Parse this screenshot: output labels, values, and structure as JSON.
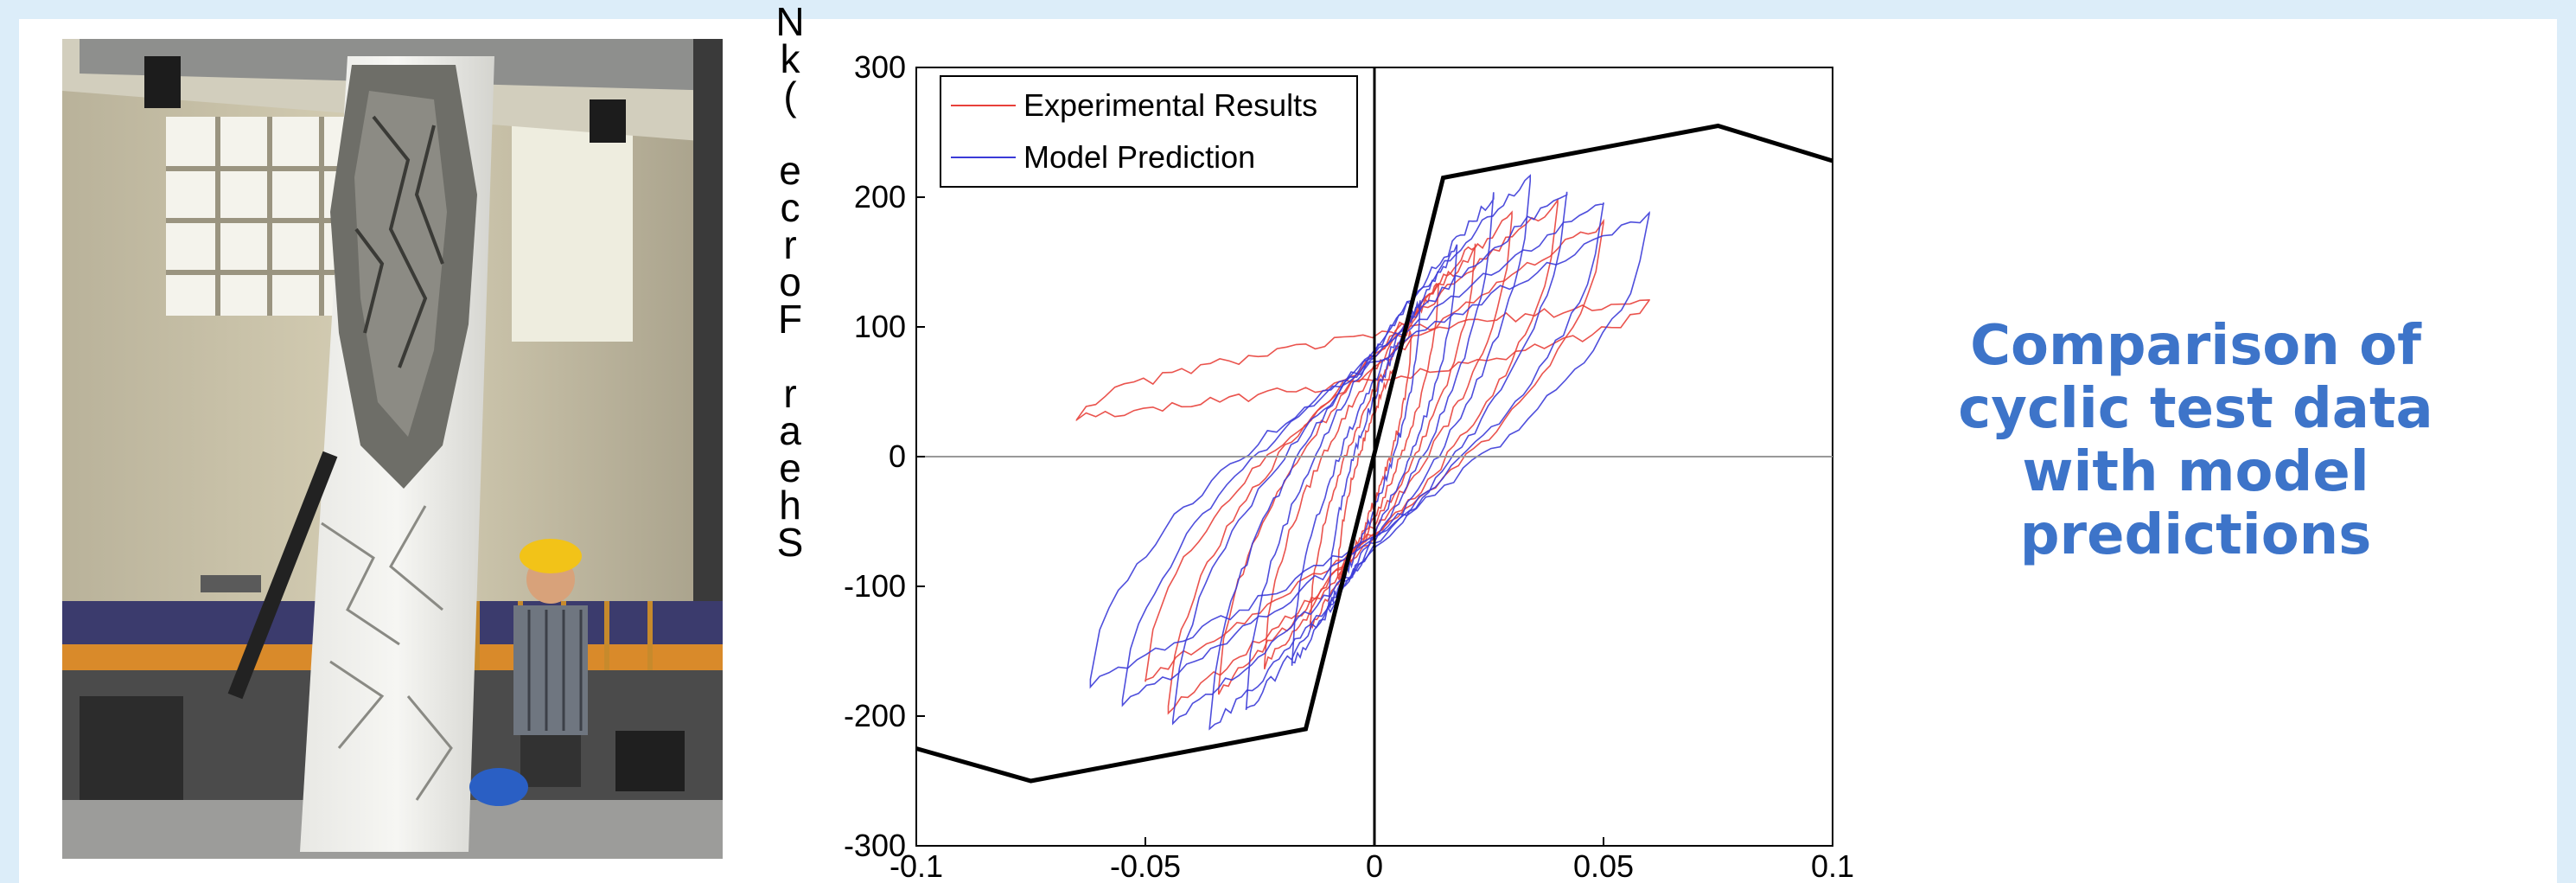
{
  "caption": "Comparison of\ncyclic test data\nwith model\npredictions",
  "photo": {
    "description_icon": "photo-of-damaged-concrete-column-with-person"
  },
  "colors": {
    "slide_border": "#dcedf9",
    "caption": "#3d74c9",
    "experimental": "#e8403a",
    "model": "#3b3bd8",
    "envelope": "#000000"
  },
  "chart_data": {
    "type": "line",
    "ylabel": "Shear Force (kN)",
    "ylabel_rendered": "N\nk\n(\n\ne\nc\nr\no\nF\n\nr\na\ne\nh\nS",
    "xlim": [
      -0.1,
      0.1
    ],
    "ylim": [
      -300,
      300
    ],
    "xticks": [
      "-0.1",
      "-0.05",
      "0",
      "0.05",
      "0.1"
    ],
    "yticks": [
      "300",
      "200",
      "100",
      "0",
      "-100",
      "-200",
      "-300"
    ],
    "grid": false,
    "legend_position": "top-left",
    "series": [
      {
        "name": "Experimental Results",
        "color": "#e8403a",
        "note": "hysteresis loops",
        "loops": [
          {
            "umax": 0.008,
            "fmax": 95,
            "umin": -0.008,
            "fmin": -95
          },
          {
            "umax": 0.014,
            "fmax": 135,
            "umin": -0.014,
            "fmin": -130
          },
          {
            "umax": 0.022,
            "fmax": 165,
            "umin": -0.024,
            "fmin": -160
          },
          {
            "umax": 0.03,
            "fmax": 185,
            "umin": -0.034,
            "fmin": -180
          },
          {
            "umax": 0.04,
            "fmax": 195,
            "umin": -0.045,
            "fmin": -195
          },
          {
            "umax": 0.05,
            "fmax": 180,
            "umin": -0.05,
            "fmin": -170
          },
          {
            "umax": 0.06,
            "fmax": 120,
            "umin": -0.065,
            "fmin": 30
          }
        ]
      },
      {
        "name": "Model Prediction",
        "color": "#3b3bd8",
        "note": "hysteresis loops",
        "loops": [
          {
            "umax": 0.01,
            "fmax": 120,
            "umin": -0.01,
            "fmin": -115
          },
          {
            "umax": 0.018,
            "fmax": 160,
            "umin": -0.018,
            "fmin": -160
          },
          {
            "umax": 0.026,
            "fmax": 200,
            "umin": -0.028,
            "fmin": -195
          },
          {
            "umax": 0.034,
            "fmax": 215,
            "umin": -0.036,
            "fmin": -210
          },
          {
            "umax": 0.042,
            "fmax": 205,
            "umin": -0.044,
            "fmin": -205
          },
          {
            "umax": 0.05,
            "fmax": 195,
            "umin": -0.055,
            "fmin": -190
          },
          {
            "umax": 0.06,
            "fmax": 185,
            "umin": -0.062,
            "fmin": -175
          }
        ]
      },
      {
        "color": "#000000",
        "note": "backbone envelope",
        "x": [
          -0.1,
          -0.075,
          -0.015,
          0.015,
          0.075,
          0.1
        ],
        "y": [
          -225,
          -250,
          -210,
          215,
          255,
          228
        ]
      }
    ]
  }
}
